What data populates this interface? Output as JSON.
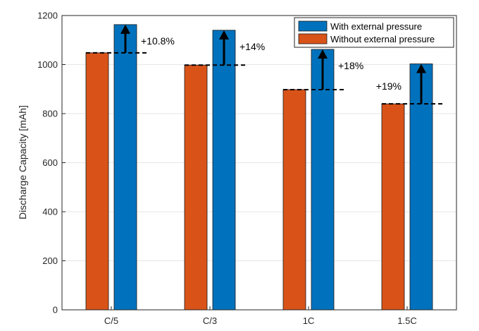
{
  "chart_data": {
    "type": "bar",
    "title": "",
    "xlabel": "",
    "ylabel": "Discharge Capacity [mAh]",
    "ylim": [
      0,
      1200
    ],
    "yticks": [
      0,
      200,
      400,
      600,
      800,
      1000,
      1200
    ],
    "grid": true,
    "legend_position": "top-right",
    "categories": [
      "C/5",
      "C/3",
      "1C",
      "1.5C"
    ],
    "series": [
      {
        "name": "Without external pressure",
        "color": "#D95319",
        "values": [
          1048,
          998,
          898,
          840
        ]
      },
      {
        "name": "With external pressure",
        "color": "#0072BD",
        "values": [
          1163,
          1140,
          1062,
          1003
        ]
      }
    ],
    "legend_order": [
      1,
      0
    ],
    "annotations": [
      {
        "category": "C/5",
        "text": "+10.8%",
        "from": 1048,
        "to": 1163
      },
      {
        "category": "C/3",
        "text": "+14%",
        "from": 998,
        "to": 1140
      },
      {
        "category": "1C",
        "text": "+18%",
        "from": 898,
        "to": 1062
      },
      {
        "category": "1.5C",
        "text": "+19%",
        "from": 840,
        "to": 1003
      }
    ]
  }
}
